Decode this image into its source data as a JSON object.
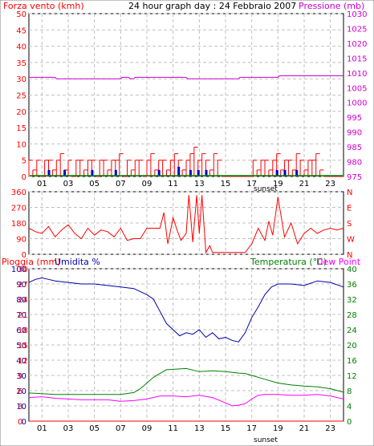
{
  "header": {
    "left_title": "Forza vento (kmh)",
    "center_title": "24 hour graph day : 24 Febbraio 2007",
    "right_title": "Pressione (mb)"
  },
  "bottom_header": {
    "left_title_1": "Pioggia (mm)",
    "left_title_2": "Umidita %",
    "right_title_1": "Temperatura (°C)",
    "right_title_2": "Dew Point"
  },
  "x_axis": {
    "ticks": [
      "01",
      "03",
      "05",
      "07",
      "09",
      "11",
      "13",
      "15",
      "17",
      "19",
      "21",
      "23"
    ],
    "sunset_label": "sunset"
  },
  "colors": {
    "wind": "#ff0000",
    "gust": "#0000cc",
    "wind_green": "#008000",
    "pressure": "#cc00cc",
    "direction": "#ff0000",
    "humidity": "#0000aa",
    "temperature": "#008000",
    "dewpoint": "#ff00ff",
    "rain": "#ff0000",
    "grid": "#c0c0c0",
    "frame_bg": "#ffffff"
  },
  "chart_data": [
    {
      "type": "line",
      "title": "24 hour graph day : 24 Febbraio 2007",
      "ylabel": "Forza vento (kmh)",
      "y2label": "Pressione (mb)",
      "ylim": [
        0,
        50
      ],
      "y2lim": [
        975,
        1030
      ],
      "y_ticks": [
        0,
        5,
        10,
        15,
        20,
        25,
        30,
        35,
        40,
        45,
        50
      ],
      "y2_ticks": [
        975,
        980,
        985,
        990,
        995,
        1000,
        1005,
        1010,
        1015,
        1020,
        1025,
        1030
      ],
      "x_range_hours": [
        0,
        24
      ],
      "series": [
        {
          "name": "Pressione (mb)",
          "color": "#cc00cc",
          "x": [
            0,
            2,
            2.1,
            7,
            7.1,
            7.6,
            7.7,
            8,
            8.1,
            12,
            12.1,
            16,
            16.1,
            19,
            19.1,
            24
          ],
          "y": [
            1008.5,
            1008.5,
            1008,
            1008,
            1008.5,
            1008.5,
            1008,
            1008,
            1008.5,
            1008.5,
            1008,
            1008,
            1008.5,
            1008.5,
            1009,
            1009
          ]
        },
        {
          "name": "Forza vento (kmh)",
          "color": "#ff0000",
          "x": [
            0,
            0.3,
            0.6,
            0.9,
            1.2,
            1.5,
            1.8,
            2.1,
            2.4,
            2.7,
            3,
            3.3,
            3.6,
            3.9,
            4.2,
            4.5,
            4.8,
            5.1,
            5.4,
            5.7,
            6,
            6.3,
            6.6,
            6.9,
            7.2,
            7.5,
            7.8,
            8.1,
            8.4,
            8.7,
            9,
            9.3,
            9.6,
            9.9,
            10.2,
            10.5,
            10.8,
            11.1,
            11.4,
            11.7,
            12,
            12.3,
            12.6,
            12.9,
            13.2,
            13.5,
            13.8,
            14.1,
            14.4,
            14.7,
            15,
            15.3,
            15.6,
            15.9,
            16.2,
            16.5,
            16.8,
            17.1,
            17.4,
            17.7,
            18,
            18.3,
            18.6,
            18.9,
            19.2,
            19.5,
            19.8,
            20.1,
            20.4,
            20.7,
            21,
            21.3,
            21.6,
            21.9,
            22.2,
            22.5,
            22.8,
            23.1,
            23.4,
            23.7
          ],
          "y": [
            5,
            2,
            5,
            0,
            5,
            5,
            2,
            5,
            7,
            2,
            5,
            0,
            5,
            5,
            2,
            5,
            5,
            0,
            5,
            5,
            2,
            5,
            5,
            7,
            0,
            5,
            2,
            5,
            5,
            0,
            5,
            7,
            2,
            5,
            5,
            2,
            5,
            7,
            5,
            2,
            5,
            7,
            9,
            5,
            7,
            5,
            2,
            7,
            5,
            0,
            0,
            0,
            0,
            0,
            0,
            0,
            0,
            5,
            2,
            5,
            5,
            2,
            5,
            7,
            2,
            5,
            5,
            2,
            7,
            5,
            2,
            5,
            5,
            7,
            2,
            0,
            0,
            0,
            0,
            0
          ]
        },
        {
          "name": "gust",
          "color": "#0000cc",
          "x": [
            1.5,
            2.7,
            4.8,
            6.6,
            9.9,
            11.4,
            12.3,
            12.9,
            13.5,
            18.9,
            19.5,
            20.4
          ],
          "y": [
            2,
            2,
            2,
            2,
            2,
            3,
            2,
            2,
            2,
            2,
            2,
            2
          ]
        }
      ]
    },
    {
      "type": "line",
      "ylabel": "",
      "ylim": [
        0,
        360
      ],
      "y_ticks": [
        0,
        90,
        180,
        270,
        360
      ],
      "y2_ticks": [
        "N",
        "W",
        "S",
        "E",
        "N"
      ],
      "series": [
        {
          "name": "direction",
          "color": "#ff0000",
          "x": [
            0,
            0.5,
            1,
            1.5,
            2,
            2.5,
            3,
            3.5,
            4,
            4.5,
            5,
            5.5,
            6,
            6.5,
            7,
            7.5,
            8,
            8.5,
            9,
            9.5,
            10,
            10.3,
            10.6,
            11,
            11.3,
            11.6,
            12,
            12.2,
            12.5,
            12.8,
            13,
            13.2,
            13.5,
            13.8,
            14,
            14.5,
            15,
            15.5,
            16,
            16.5,
            17,
            17.5,
            18,
            18.3,
            18.6,
            19,
            19.5,
            20,
            20.5,
            21,
            21.5,
            22,
            22.5,
            23,
            23.5,
            24
          ],
          "y": [
            150,
            130,
            120,
            160,
            100,
            140,
            170,
            120,
            90,
            150,
            110,
            140,
            130,
            100,
            150,
            80,
            90,
            90,
            150,
            150,
            150,
            240,
            60,
            210,
            140,
            80,
            120,
            340,
            70,
            340,
            120,
            340,
            10,
            50,
            10,
            10,
            10,
            10,
            10,
            10,
            60,
            150,
            80,
            190,
            110,
            330,
            100,
            180,
            60,
            120,
            150,
            120,
            140,
            150,
            140,
            150
          ]
        }
      ]
    },
    {
      "type": "line",
      "ylabel": "Pioggia (mm) / Umidita %",
      "y2label": "Temperatura (°C)/Dew Point",
      "ylim": [
        0,
        100
      ],
      "rain_ticks": [
        0,
        3,
        6,
        9,
        12,
        15,
        18,
        21,
        24,
        27,
        30
      ],
      "y2lim": [
        0,
        40
      ],
      "y_ticks": [
        0,
        10,
        20,
        30,
        40,
        50,
        60,
        70,
        80,
        90,
        100
      ],
      "y2_ticks": [
        0,
        4,
        8,
        12,
        16,
        20,
        24,
        28,
        32,
        36,
        40
      ],
      "series": [
        {
          "name": "Umidita %",
          "color": "#0000aa",
          "x": [
            0,
            0.5,
            1,
            1.5,
            2,
            3,
            4,
            5,
            6,
            7,
            8,
            9,
            9.5,
            10,
            10.5,
            11,
            11.5,
            12,
            12.5,
            13,
            13.5,
            14,
            14.5,
            15,
            15.5,
            16,
            16.5,
            17,
            17.5,
            18,
            18.5,
            19,
            20,
            21,
            22,
            23,
            24
          ],
          "y": [
            91,
            93,
            94,
            93,
            92,
            91,
            90,
            90,
            89,
            88,
            87,
            83,
            80,
            72,
            64,
            60,
            56,
            58,
            57,
            60,
            55,
            58,
            54,
            55,
            53,
            52,
            58,
            68,
            75,
            83,
            88,
            90,
            90,
            89,
            92,
            91,
            88
          ]
        },
        {
          "name": "Temperatura (°C)",
          "color": "#008000",
          "x": [
            0,
            1,
            2,
            3,
            4,
            5,
            6,
            7,
            8,
            8.5,
            9,
            9.5,
            10,
            10.5,
            11,
            12,
            13,
            14,
            15,
            16,
            16.5,
            17,
            18,
            19,
            20,
            21,
            22,
            23,
            24
          ],
          "y": [
            7.4,
            7.2,
            7,
            7,
            7,
            7,
            7,
            7,
            7.5,
            8.5,
            10,
            11.5,
            12.5,
            13.5,
            13.6,
            13.8,
            13,
            13.2,
            13,
            12.6,
            12.5,
            12,
            11,
            10,
            9.5,
            9.2,
            9,
            8.5,
            7.6
          ]
        },
        {
          "name": "Dew Point",
          "color": "#ff00ff",
          "x": [
            0,
            1,
            2,
            3,
            4,
            5,
            6,
            7,
            8,
            9,
            10,
            11,
            12,
            13,
            14,
            15,
            15.5,
            16,
            16.5,
            17,
            17.5,
            18,
            19,
            20,
            21,
            22,
            23,
            24
          ],
          "y": [
            6.2,
            6.4,
            6,
            5.8,
            5.6,
            5.6,
            5.6,
            5.2,
            5.4,
            5.8,
            6.6,
            6.6,
            6.4,
            6.8,
            6.2,
            4.8,
            4,
            4.2,
            4.6,
            5.8,
            6.8,
            7,
            7,
            6.8,
            6.8,
            7,
            6.6,
            5.8
          ]
        },
        {
          "name": "Pioggia (mm)",
          "color": "#ff0000",
          "x": [
            0,
            24
          ],
          "y": [
            0,
            0
          ]
        }
      ]
    }
  ]
}
